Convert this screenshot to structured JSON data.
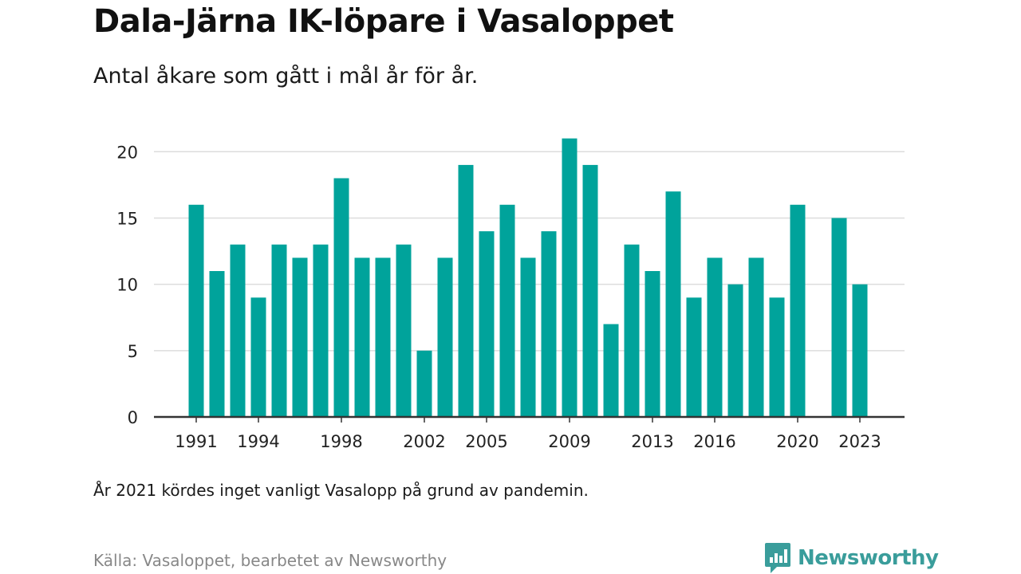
{
  "header": {
    "title": "Dala-Järna IK-löpare i Vasaloppet",
    "subtitle": "Antal åkare som gått i mål år för år."
  },
  "footer": {
    "note": "År 2021 kördes inget vanligt Vasalopp på grund av pandemin.",
    "source": "Källa: Vasaloppet, bearbetet av Newsworthy",
    "brand": "Newsworthy",
    "brand_logo_icon": "newsworthy-logo-icon"
  },
  "colors": {
    "bar": "#00a39b",
    "brand": "#3a9d9b",
    "grid": "#dddddd",
    "axis": "#333333"
  },
  "chart_data": {
    "type": "bar",
    "categories": [
      "1991",
      "1992",
      "1993",
      "1994",
      "1995",
      "1996",
      "1997",
      "1998",
      "1999",
      "2000",
      "2001",
      "2002",
      "2003",
      "2004",
      "2005",
      "2006",
      "2007",
      "2008",
      "2009",
      "2010",
      "2011",
      "2012",
      "2013",
      "2014",
      "2015",
      "2016",
      "2017",
      "2018",
      "2019",
      "2020",
      "2021",
      "2022",
      "2023"
    ],
    "values": [
      16,
      11,
      13,
      9,
      13,
      12,
      13,
      18,
      12,
      12,
      13,
      5,
      12,
      19,
      14,
      16,
      12,
      14,
      21,
      19,
      7,
      13,
      11,
      17,
      9,
      12,
      10,
      12,
      9,
      16,
      null,
      15,
      10
    ],
    "x_tick_labels": [
      "1991",
      "1994",
      "1998",
      "2002",
      "2005",
      "2009",
      "2013",
      "2016",
      "2020",
      "2023"
    ],
    "y_ticks": [
      0,
      5,
      10,
      15,
      20
    ],
    "ylim": [
      0,
      22
    ],
    "xlabel": "",
    "ylabel": "",
    "grid": true,
    "legend": "none"
  }
}
